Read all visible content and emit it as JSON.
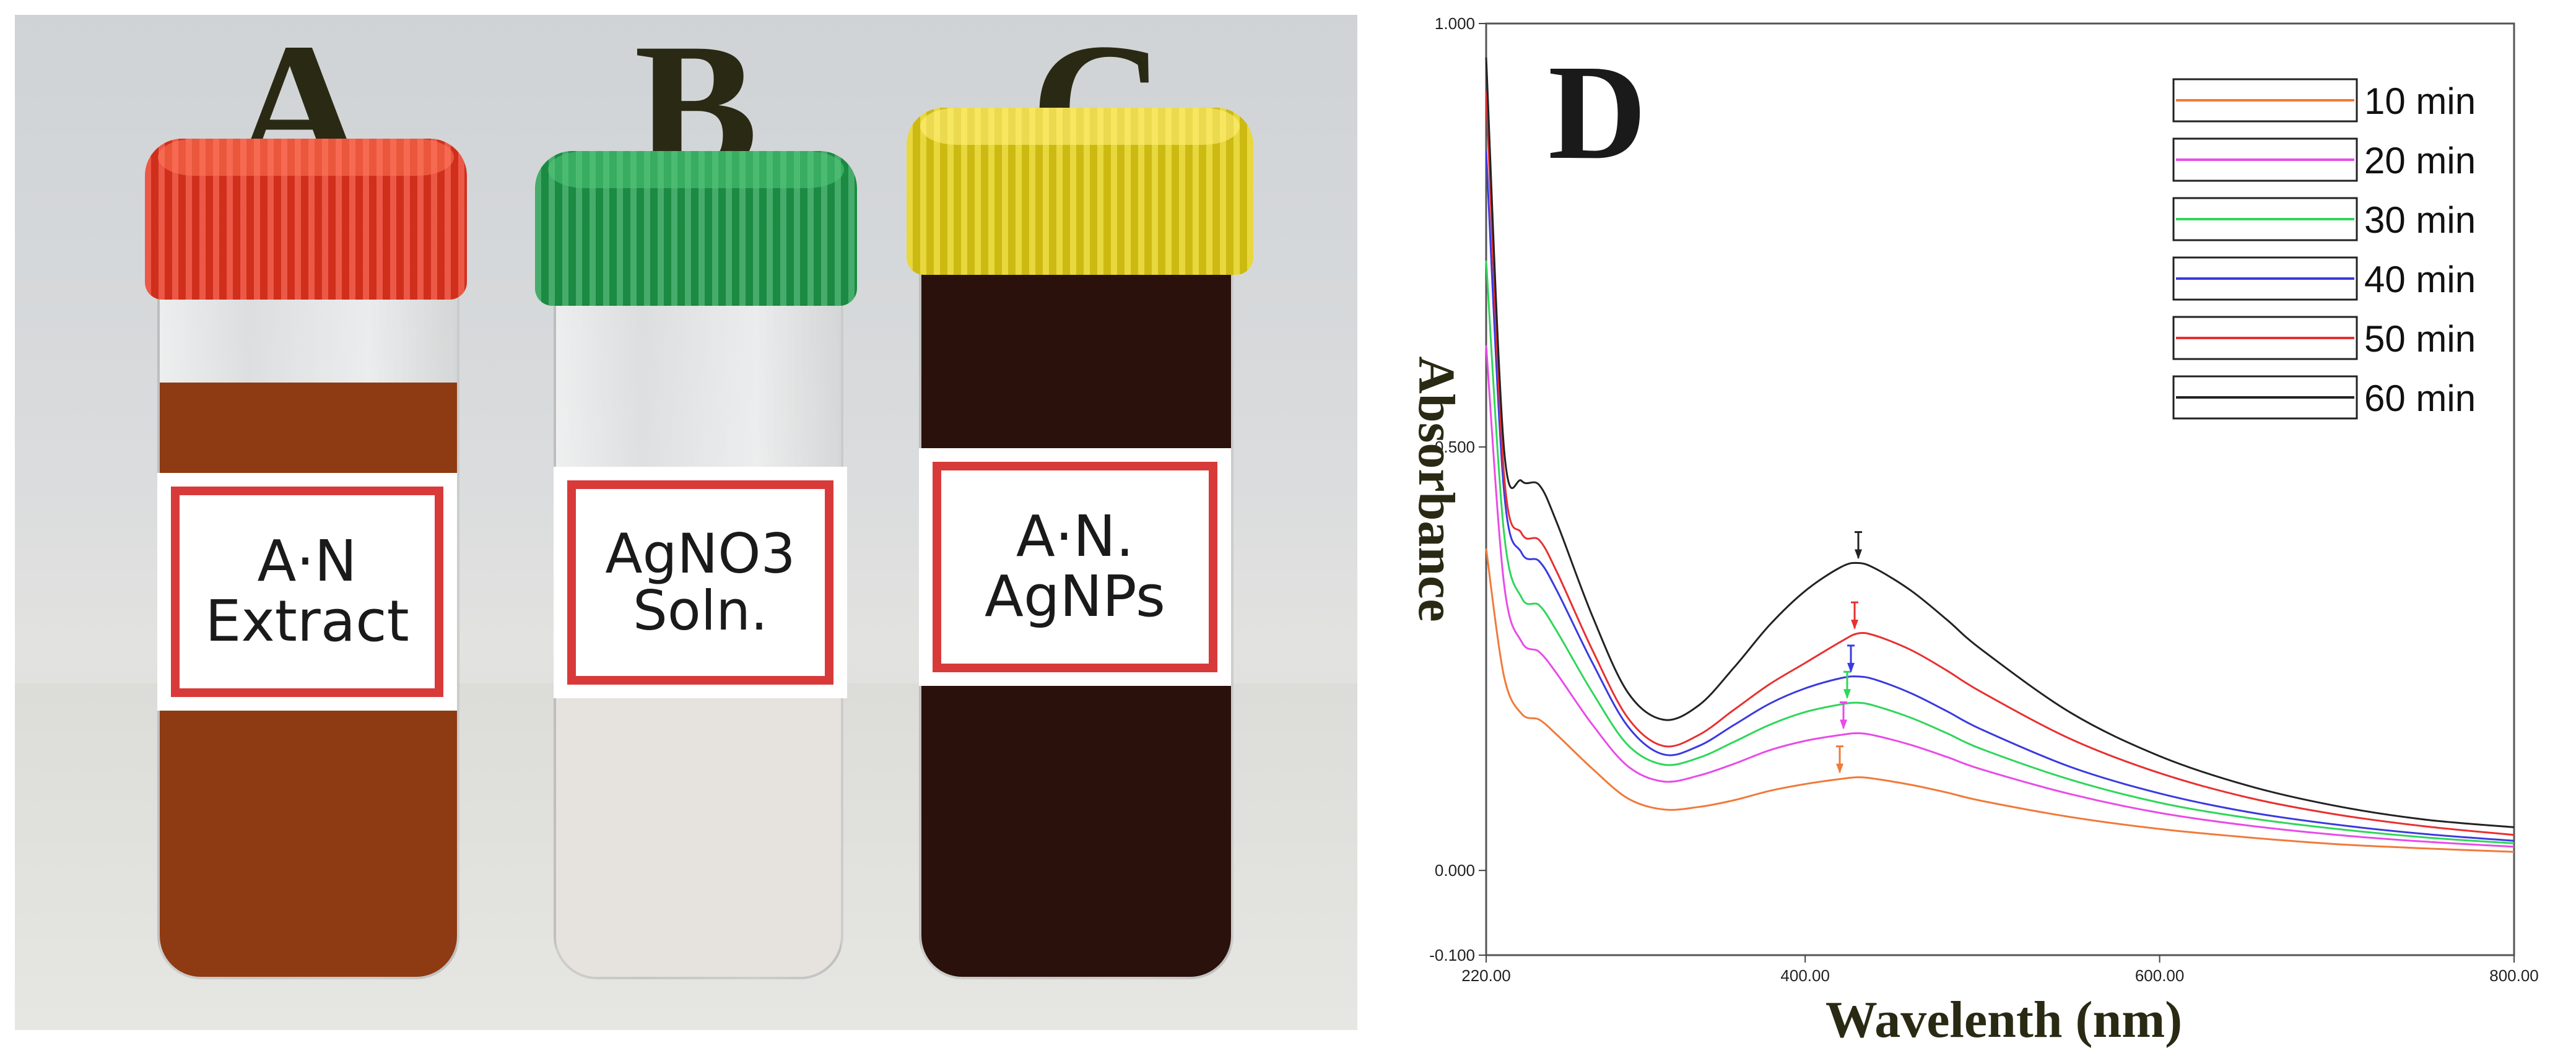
{
  "photo": {
    "letters": [
      "A",
      "B",
      "C"
    ],
    "vials": [
      {
        "letter": "A",
        "label_lines": [
          "A·N",
          "Extract"
        ],
        "cap_color": "#e8341f",
        "liquid_color": "#8e3a12",
        "fill": 0.85
      },
      {
        "letter": "B",
        "label_lines": [
          "AgNO3",
          "Soln."
        ],
        "cap_color": "#1e9a4a",
        "liquid_color": "#e6e3de",
        "fill": 0.72
      },
      {
        "letter": "C",
        "label_lines": [
          "A·N.",
          "AgNPs"
        ],
        "cap_color": "#e3cf14",
        "liquid_color": "#2b110b",
        "fill": 0.97
      }
    ]
  },
  "chart_data": {
    "type": "line",
    "panel_letter": "D",
    "xlabel": "Wavelenth (nm)",
    "ylabel": "Absorbance",
    "xlim": [
      220,
      800
    ],
    "ylim": [
      -0.1,
      1.0
    ],
    "xticks": [
      {
        "value": 220,
        "label": "220.00"
      },
      {
        "value": 400,
        "label": "400.00"
      },
      {
        "value": 600,
        "label": "600.00"
      },
      {
        "value": 800,
        "label": "800.00"
      }
    ],
    "yticks": [
      {
        "value": -0.1,
        "label": "-0.100"
      },
      {
        "value": 0.0,
        "label": "0.000"
      },
      {
        "value": 0.5,
        "label": "0.500"
      },
      {
        "value": 1.0,
        "label": "1.000"
      }
    ],
    "legend_position": "top-right",
    "peak_wavelength": 430,
    "series": [
      {
        "name": "10 min",
        "color": "#f07a3a",
        "x": [
          220,
          230,
          240,
          250,
          260,
          280,
          300,
          320,
          340,
          360,
          380,
          400,
          420,
          430,
          440,
          460,
          480,
          500,
          550,
          600,
          650,
          700,
          750,
          800
        ],
        "y": [
          0.38,
          0.23,
          0.185,
          0.178,
          0.16,
          0.12,
          0.085,
          0.072,
          0.075,
          0.083,
          0.094,
          0.102,
          0.108,
          0.11,
          0.108,
          0.101,
          0.092,
          0.082,
          0.063,
          0.049,
          0.039,
          0.031,
          0.026,
          0.022
        ]
      },
      {
        "name": "20 min",
        "color": "#e84be8",
        "x": [
          220,
          230,
          240,
          250,
          260,
          280,
          300,
          320,
          340,
          360,
          380,
          400,
          420,
          430,
          440,
          460,
          480,
          500,
          550,
          600,
          650,
          700,
          750,
          800
        ],
        "y": [
          0.62,
          0.34,
          0.27,
          0.258,
          0.232,
          0.172,
          0.123,
          0.105,
          0.112,
          0.126,
          0.142,
          0.153,
          0.16,
          0.162,
          0.159,
          0.148,
          0.134,
          0.119,
          0.09,
          0.068,
          0.053,
          0.042,
          0.034,
          0.028
        ]
      },
      {
        "name": "30 min",
        "color": "#2fd65a",
        "x": [
          220,
          230,
          240,
          250,
          260,
          280,
          300,
          320,
          340,
          360,
          380,
          400,
          420,
          430,
          440,
          460,
          480,
          500,
          550,
          600,
          650,
          700,
          750,
          800
        ],
        "y": [
          0.72,
          0.4,
          0.322,
          0.313,
          0.282,
          0.21,
          0.148,
          0.125,
          0.133,
          0.152,
          0.172,
          0.187,
          0.196,
          0.198,
          0.194,
          0.18,
          0.162,
          0.143,
          0.107,
          0.08,
          0.062,
          0.049,
          0.039,
          0.032
        ]
      },
      {
        "name": "40 min",
        "color": "#3a3ae0",
        "x": [
          220,
          230,
          240,
          250,
          260,
          280,
          300,
          320,
          340,
          360,
          380,
          400,
          420,
          430,
          440,
          460,
          480,
          500,
          550,
          600,
          650,
          700,
          750,
          800
        ],
        "y": [
          0.85,
          0.45,
          0.375,
          0.365,
          0.33,
          0.245,
          0.17,
          0.137,
          0.147,
          0.172,
          0.197,
          0.215,
          0.227,
          0.229,
          0.225,
          0.209,
          0.188,
          0.166,
          0.122,
          0.091,
          0.069,
          0.054,
          0.043,
          0.035
        ]
      },
      {
        "name": "50 min",
        "color": "#e83030",
        "x": [
          220,
          230,
          240,
          250,
          260,
          280,
          300,
          320,
          340,
          360,
          380,
          400,
          420,
          430,
          440,
          460,
          480,
          500,
          550,
          600,
          650,
          700,
          750,
          800
        ],
        "y": [
          0.92,
          0.47,
          0.398,
          0.39,
          0.352,
          0.26,
          0.18,
          0.147,
          0.16,
          0.19,
          0.22,
          0.245,
          0.27,
          0.28,
          0.277,
          0.26,
          0.236,
          0.21,
          0.155,
          0.115,
          0.086,
          0.066,
          0.052,
          0.042
        ]
      },
      {
        "name": "60 min",
        "color": "#222222",
        "x": [
          220,
          230,
          240,
          250,
          260,
          280,
          300,
          320,
          340,
          360,
          380,
          400,
          420,
          430,
          440,
          460,
          480,
          500,
          550,
          600,
          650,
          700,
          750,
          800
        ],
        "y": [
          0.96,
          0.5,
          0.46,
          0.455,
          0.41,
          0.3,
          0.21,
          0.178,
          0.195,
          0.24,
          0.29,
          0.33,
          0.358,
          0.363,
          0.356,
          0.33,
          0.296,
          0.26,
          0.186,
          0.135,
          0.1,
          0.076,
          0.06,
          0.051
        ]
      }
    ]
  }
}
